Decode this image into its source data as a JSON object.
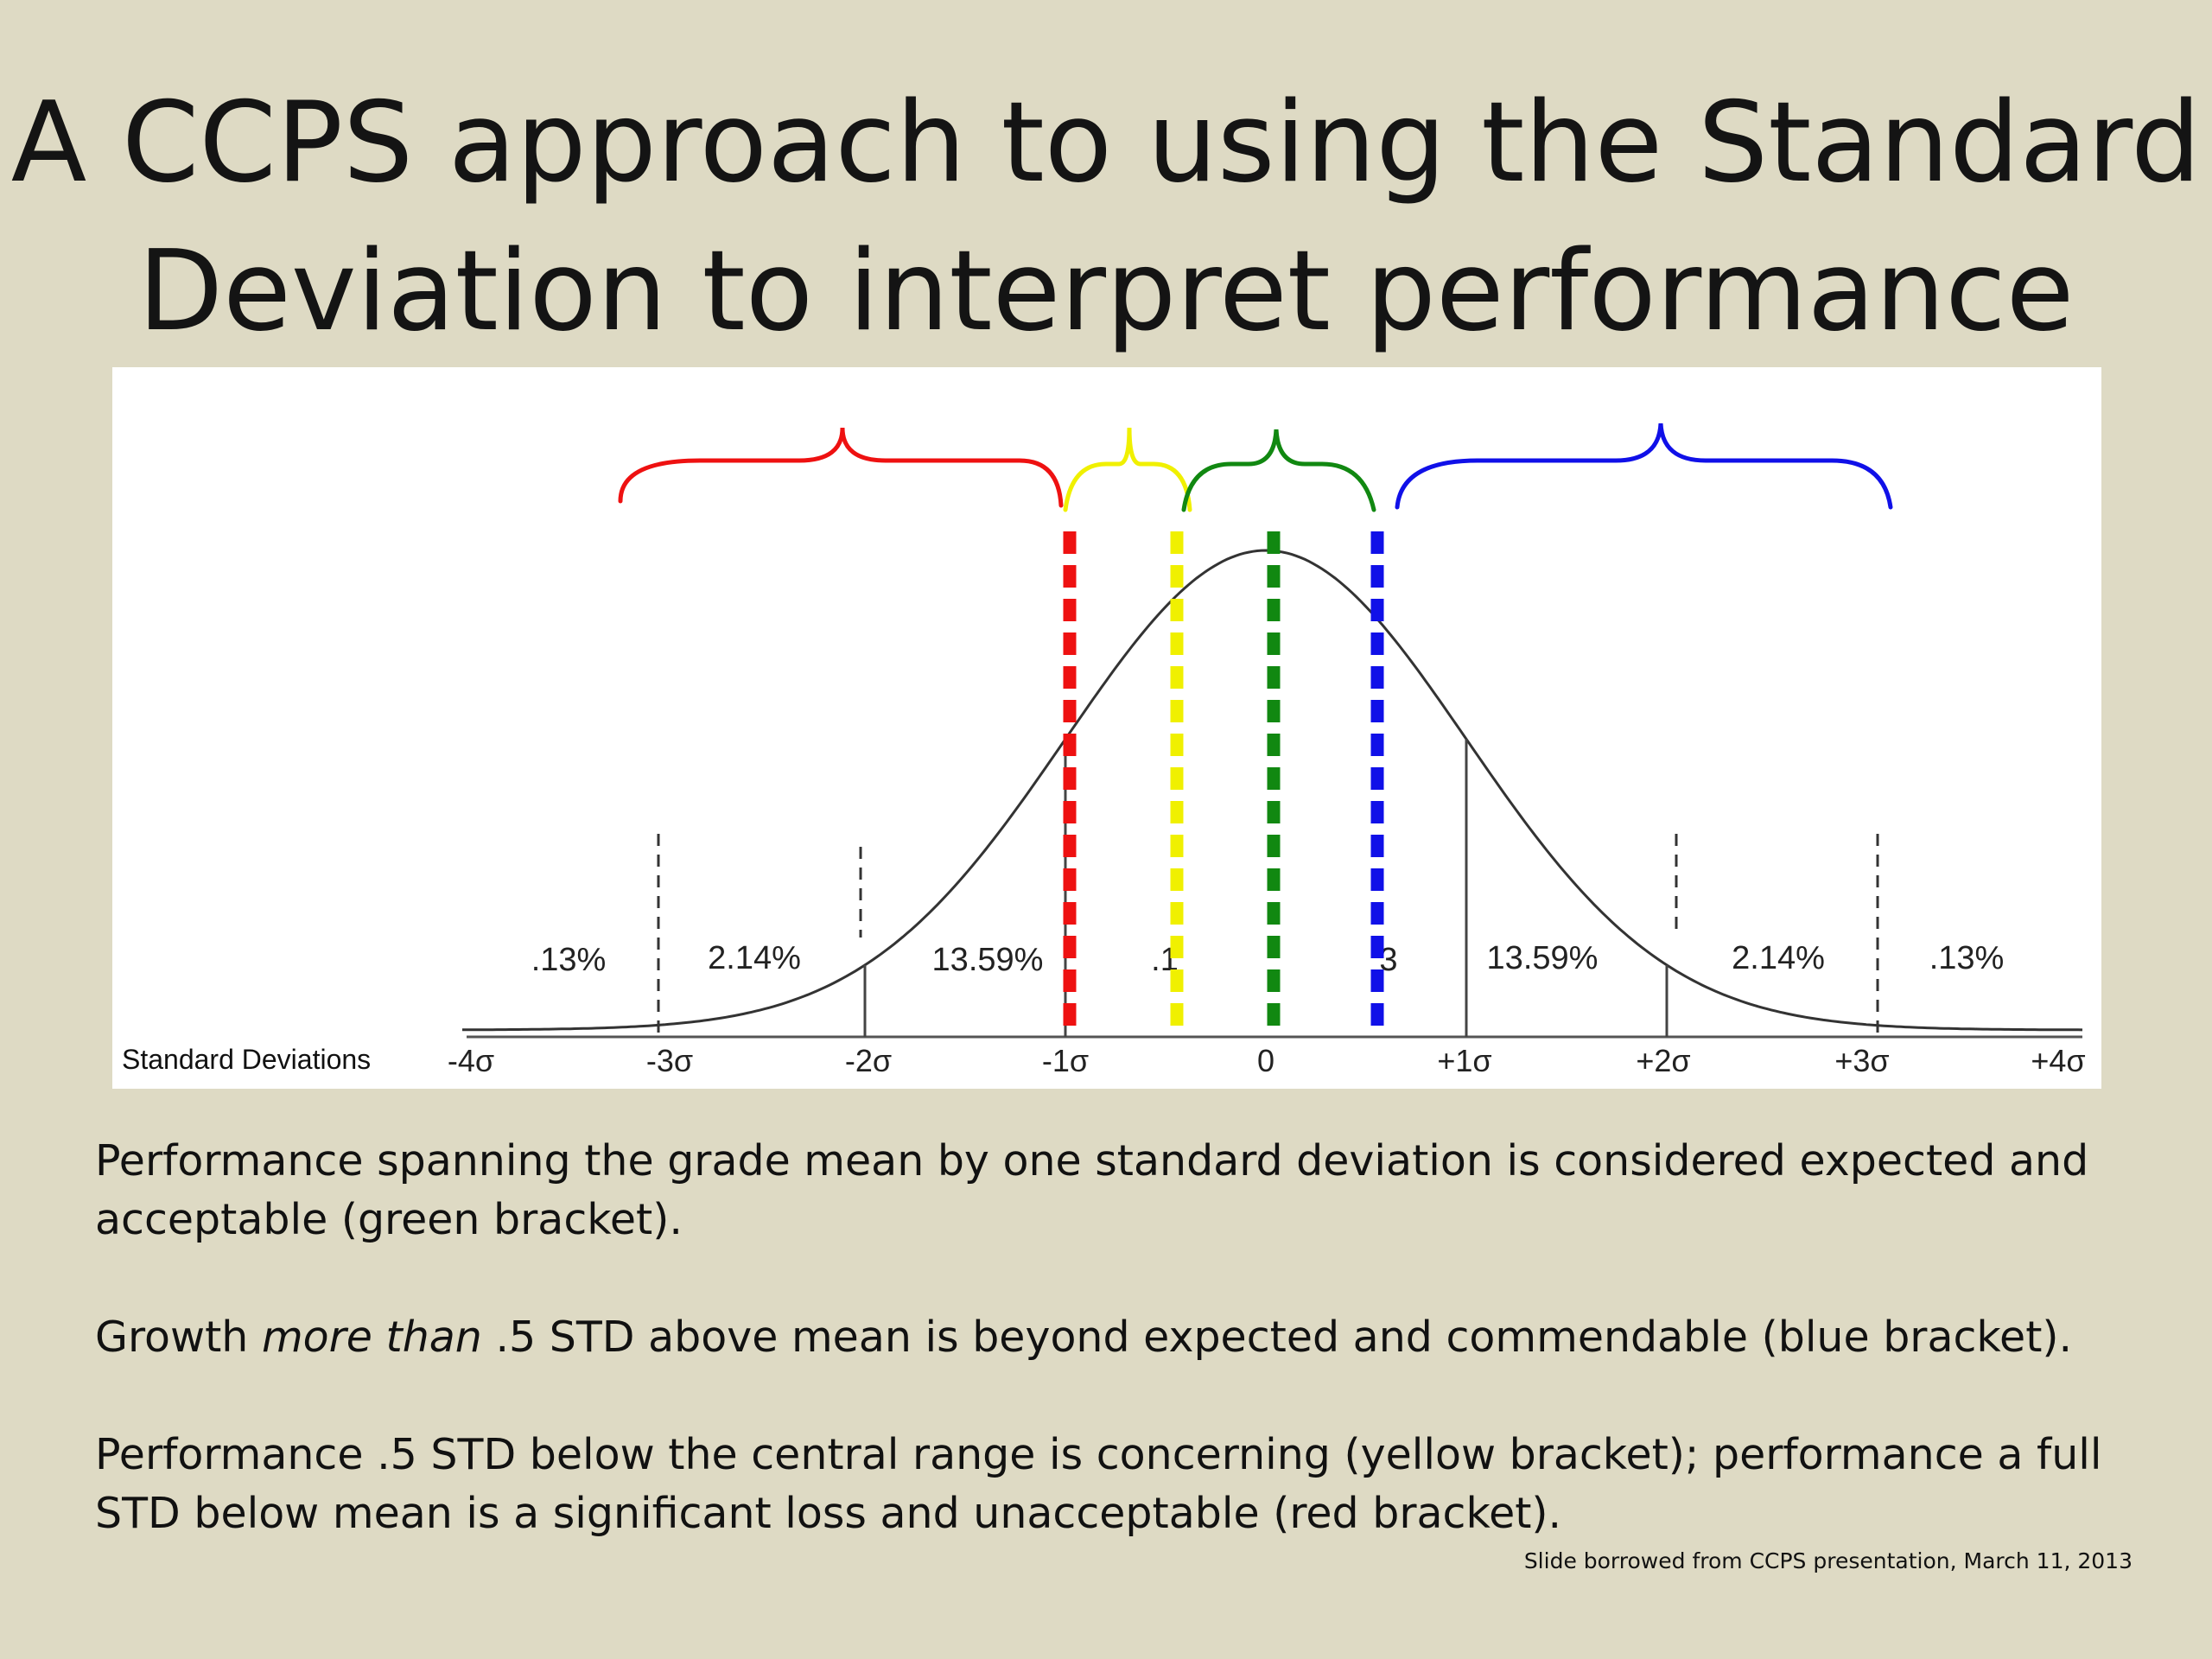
{
  "slide": {
    "title_line1": "A CCPS approach to using the Standard",
    "title_line2": "Deviation to interpret performance",
    "paragraph1": "Performance spanning the grade mean by one standard deviation is considered expected and acceptable (green bracket).",
    "paragraph2_prefix": "Growth ",
    "paragraph2_emphasis": "more than",
    "paragraph2_suffix": " .5 STD above mean is beyond expected and commendable (blue bracket).",
    "paragraph3": "Performance .5 STD below the central range is concerning (yellow bracket); performance a full STD below mean is a significant loss and unacceptable (red bracket).",
    "credit": "Slide borrowed from CCPS presentation, March 11, 2013"
  },
  "diagram": {
    "axis_caption": "Standard Deviations",
    "sd_ticks": [
      "-4σ",
      "-3σ",
      "-2σ",
      "-1σ",
      "0",
      "+1σ",
      "+2σ",
      "+3σ",
      "+4σ"
    ],
    "region_labels": [
      ".13%",
      "2.14%",
      "13.59%",
      ".1",
      "3",
      "13.59%",
      "2.14%",
      ".13%"
    ],
    "bracket_colors": {
      "red": "#ee1111",
      "yellow": "#f0f000",
      "green": "#118811",
      "blue": "#1010e8"
    }
  }
}
